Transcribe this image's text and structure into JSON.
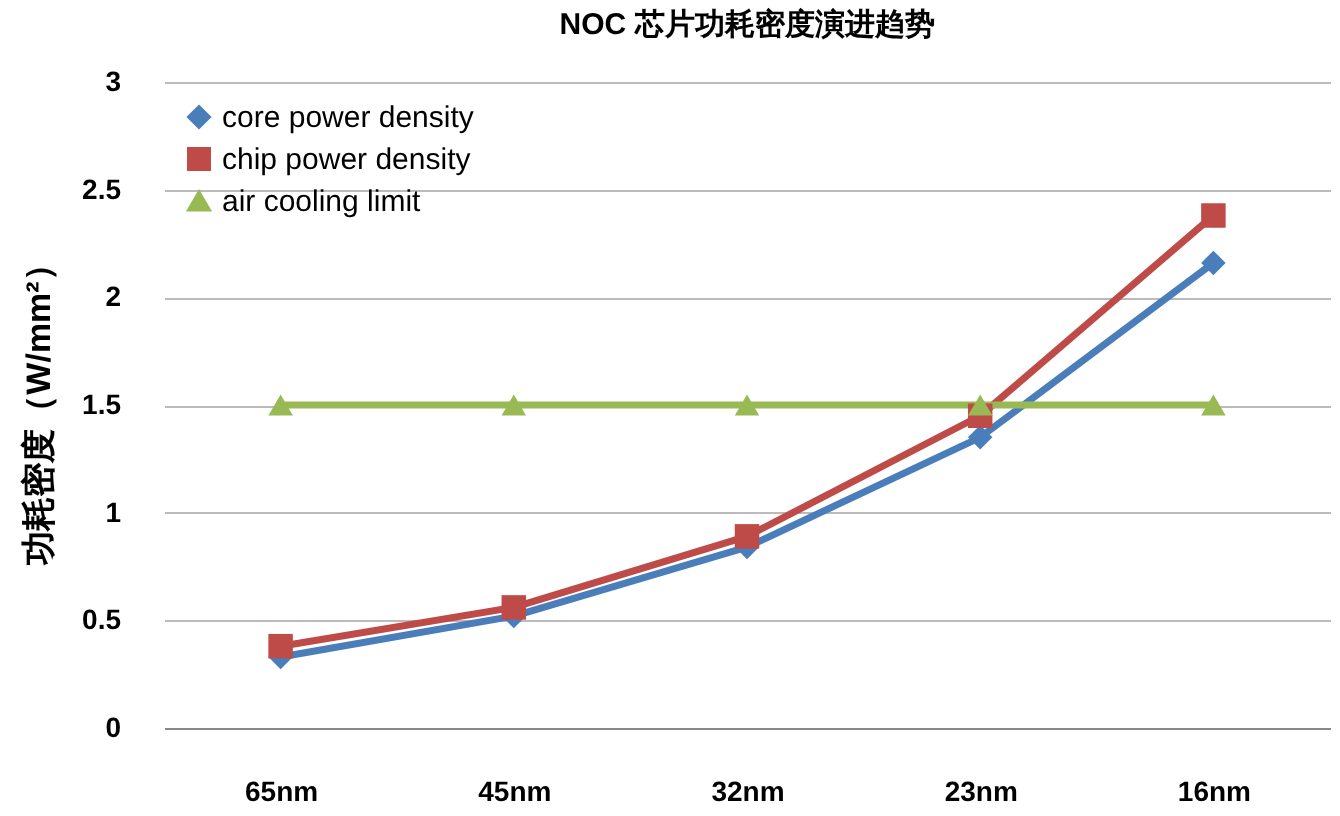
{
  "chart_data": {
    "type": "line",
    "title": "NOC 芯片功耗密度演进趋势",
    "ylabel": "功耗密度（W/mm²）",
    "categories": [
      "65nm",
      "45nm",
      "32nm",
      "23nm",
      "16nm"
    ],
    "series": [
      {
        "name": "core power density",
        "color": "#4a7ebb",
        "marker": "diamond",
        "values": [
          0.33,
          0.52,
          0.84,
          1.35,
          2.16
        ]
      },
      {
        "name": "chip power density",
        "color": "#be4b48",
        "marker": "square",
        "values": [
          0.38,
          0.56,
          0.89,
          1.45,
          2.38
        ]
      },
      {
        "name": "air cooling limit",
        "color": "#98b954",
        "marker": "triangle",
        "values": [
          1.5,
          1.5,
          1.5,
          1.5,
          1.5
        ]
      }
    ],
    "ylim": [
      0,
      3
    ],
    "yticks": [
      0,
      0.5,
      1,
      1.5,
      2,
      2.5,
      3
    ],
    "grid": "y",
    "legend": "top left",
    "line_style": "solid"
  }
}
